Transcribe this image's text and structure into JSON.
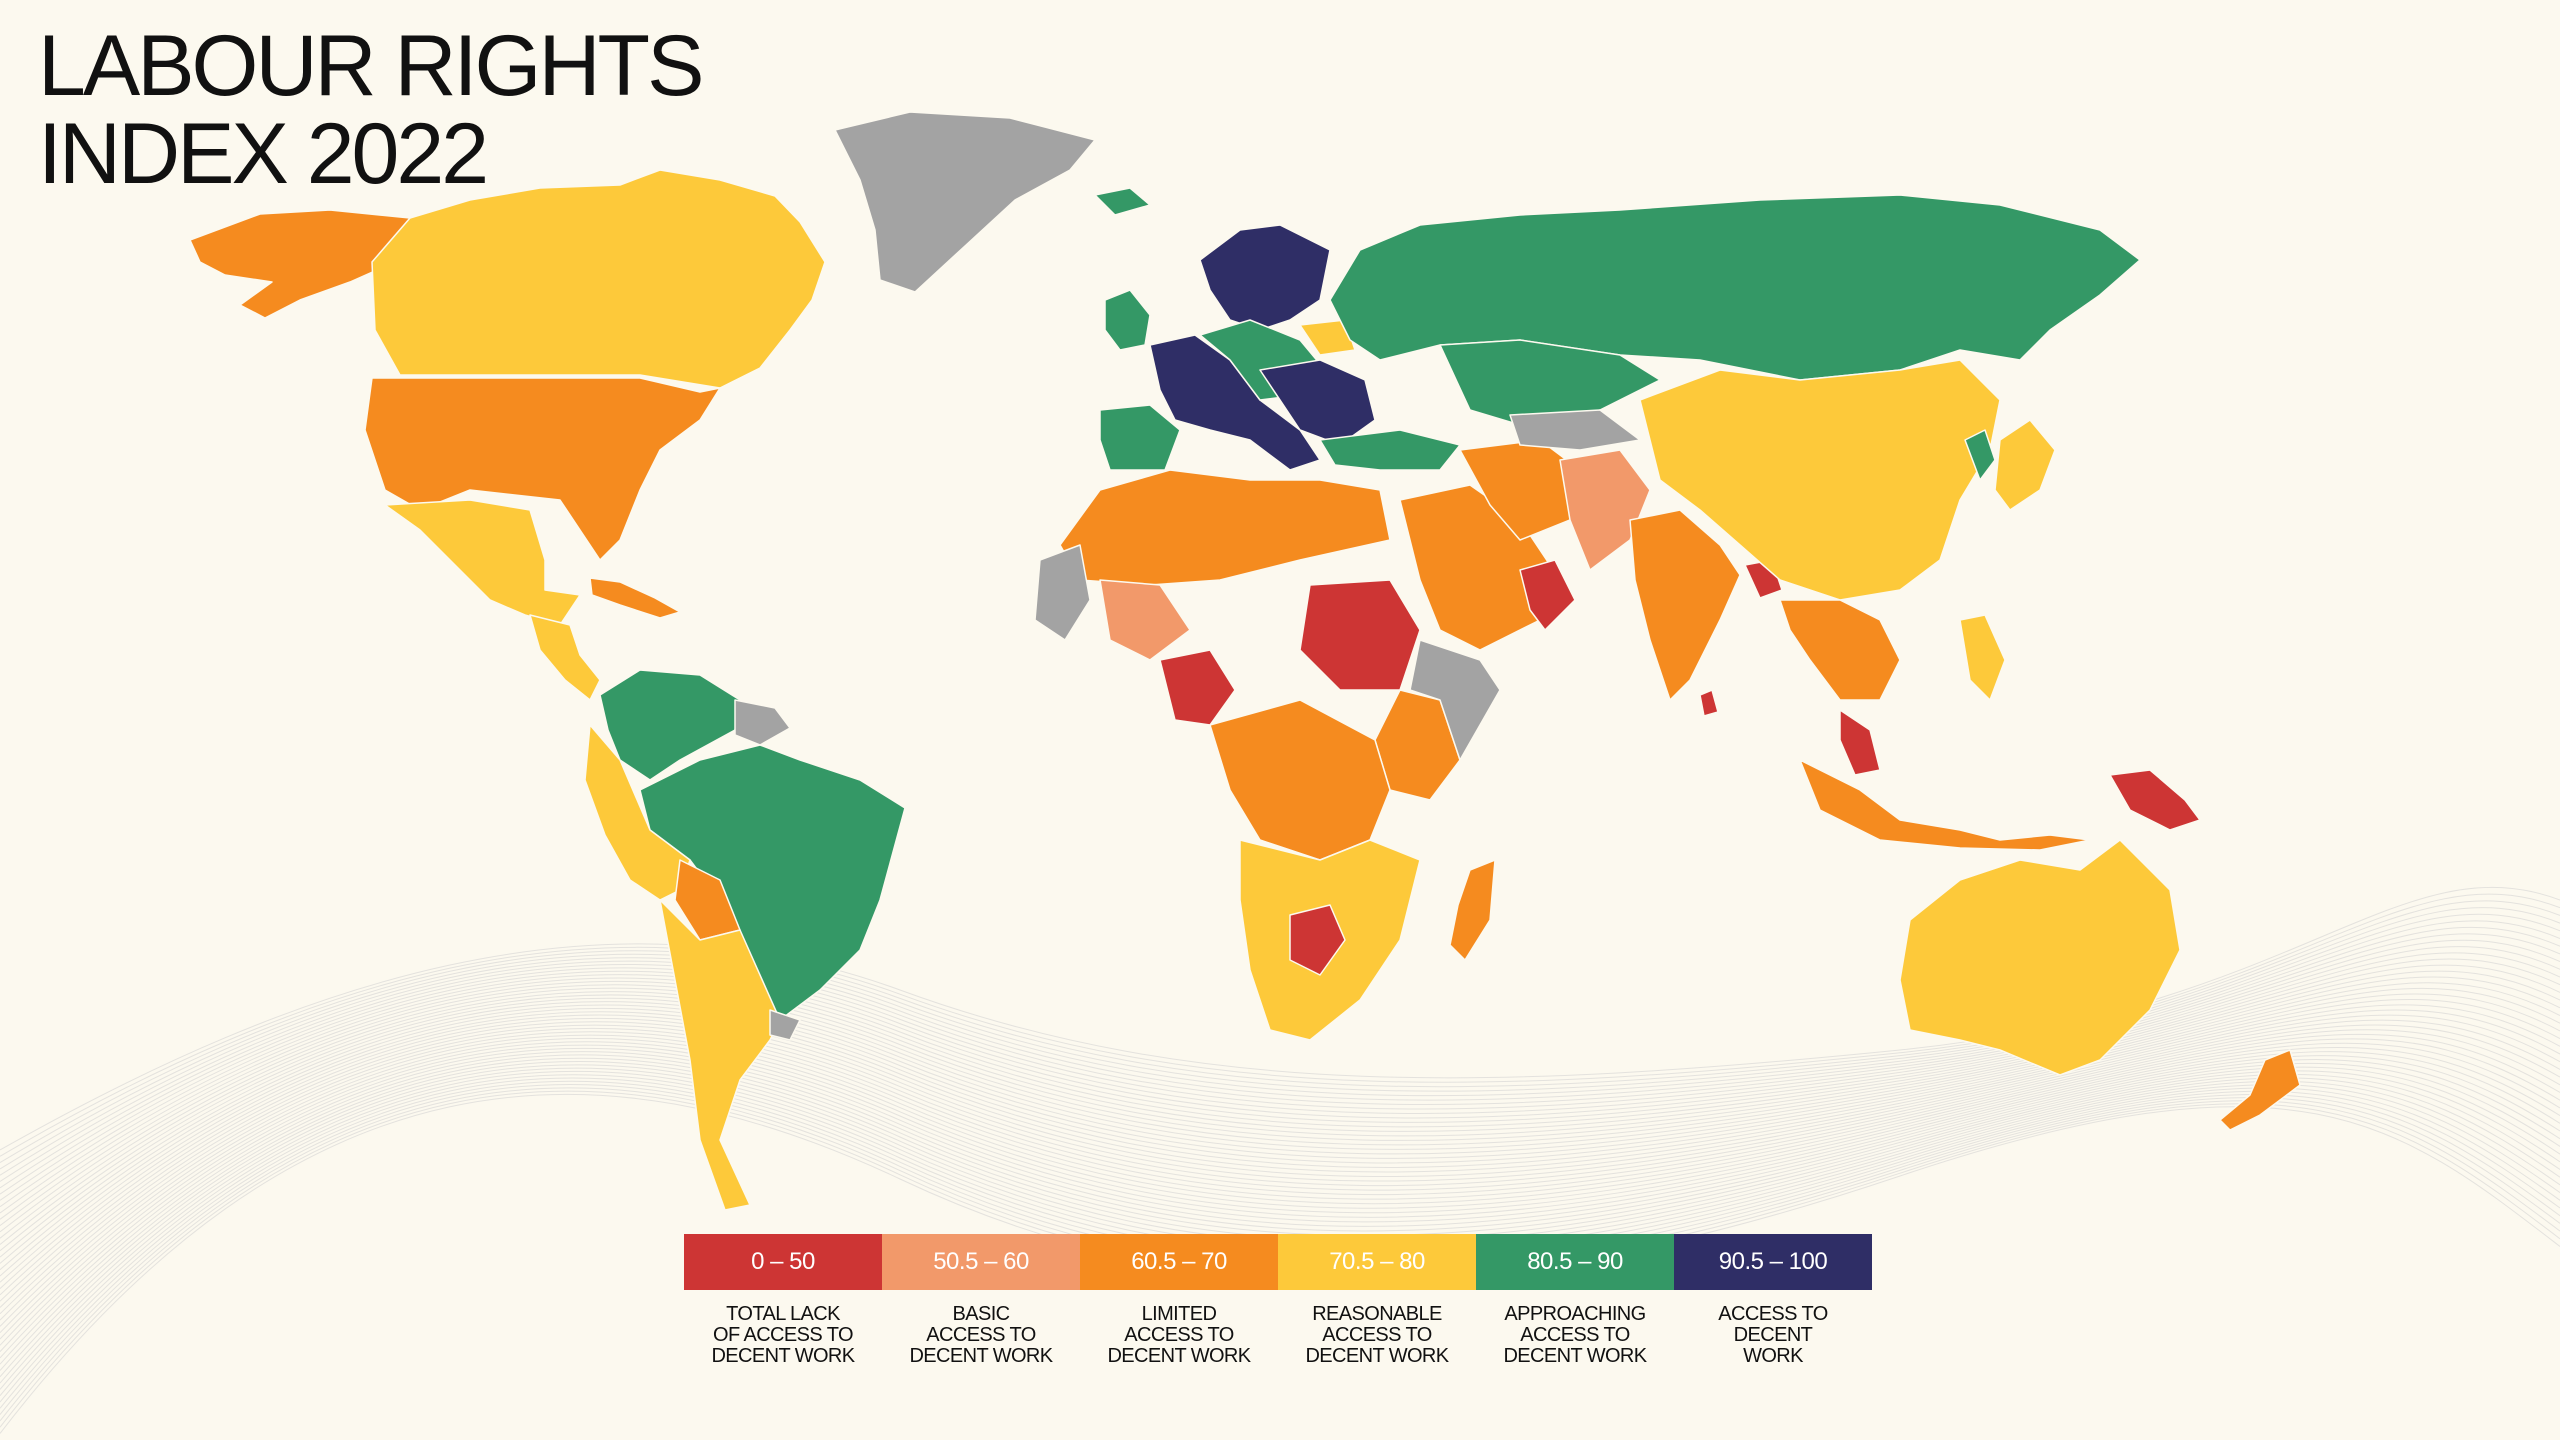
{
  "title": {
    "line1": "LABOUR RIGHTS",
    "line2": "INDEX 2022"
  },
  "colors": {
    "background": "#fcf9ef",
    "no_data": "#a3a3a3",
    "wave_lines": "#cfcfcf"
  },
  "legend": [
    {
      "range": "0 – 50",
      "label": "TOTAL LACK\nOF ACCESS TO\nDECENT WORK",
      "color": "#cd3534"
    },
    {
      "range": "50.5 – 60",
      "label": "BASIC\nACCESS TO\nDECENT WORK",
      "color": "#f2996a"
    },
    {
      "range": "60.5 – 70",
      "label": "LIMITED\nACCESS TO\nDECENT WORK",
      "color": "#f58b1f"
    },
    {
      "range": "70.5 – 80",
      "label": "REASONABLE\nACCESS TO\nDECENT WORK",
      "color": "#fdc93a"
    },
    {
      "range": "80.5 – 90",
      "label": "APPROACHING\nACCESS TO\nDECENT WORK",
      "color": "#349866"
    },
    {
      "range": "90.5 – 100",
      "label": "ACCESS TO\nDECENT\nWORK",
      "color": "#2f2e66"
    }
  ],
  "regions": [
    {
      "name": "alaska",
      "band": 2
    },
    {
      "name": "canada",
      "band": 3
    },
    {
      "name": "greenland",
      "band": -1
    },
    {
      "name": "usa",
      "band": 2
    },
    {
      "name": "mexico",
      "band": 3
    },
    {
      "name": "central-america",
      "band": 3
    },
    {
      "name": "caribbean",
      "band": 2
    },
    {
      "name": "colombia-venezuela",
      "band": 4
    },
    {
      "name": "guianas",
      "band": -1
    },
    {
      "name": "brazil",
      "band": 4
    },
    {
      "name": "peru-ecuador",
      "band": 3
    },
    {
      "name": "bolivia",
      "band": 2
    },
    {
      "name": "chile-argentina",
      "band": 3
    },
    {
      "name": "uruguay",
      "band": -1
    },
    {
      "name": "iceland",
      "band": 4
    },
    {
      "name": "uk-ireland",
      "band": 4
    },
    {
      "name": "iberia",
      "band": 4
    },
    {
      "name": "western-europe",
      "band": 5
    },
    {
      "name": "nordics",
      "band": 5
    },
    {
      "name": "central-europe",
      "band": 4
    },
    {
      "name": "belarus",
      "band": 3
    },
    {
      "name": "eastern-europe",
      "band": 5
    },
    {
      "name": "russia",
      "band": 4
    },
    {
      "name": "kazakhstan",
      "band": 4
    },
    {
      "name": "turkey",
      "band": 4
    },
    {
      "name": "north-africa",
      "band": 2
    },
    {
      "name": "west-africa-nodata",
      "band": -1
    },
    {
      "name": "mali-niger",
      "band": 1
    },
    {
      "name": "nigeria",
      "band": 0
    },
    {
      "name": "sudan",
      "band": 0
    },
    {
      "name": "east-africa",
      "band": 2
    },
    {
      "name": "horn-somalia",
      "band": -1
    },
    {
      "name": "central-africa",
      "band": 2
    },
    {
      "name": "southern-africa",
      "band": 3
    },
    {
      "name": "zimbabwe",
      "band": 0
    },
    {
      "name": "madagascar",
      "band": 2
    },
    {
      "name": "arabia",
      "band": 2
    },
    {
      "name": "oman",
      "band": 0
    },
    {
      "name": "iran",
      "band": 2
    },
    {
      "name": "afghanistan-pakistan",
      "band": 1
    },
    {
      "name": "central-asia",
      "band": -1
    },
    {
      "name": "india",
      "band": 2
    },
    {
      "name": "sri-lanka",
      "band": 0
    },
    {
      "name": "bangladesh",
      "band": 0
    },
    {
      "name": "china-mongolia",
      "band": 3
    },
    {
      "name": "korea",
      "band": 4
    },
    {
      "name": "japan",
      "band": 3
    },
    {
      "name": "southeast-asia",
      "band": 2
    },
    {
      "name": "philippines",
      "band": 3
    },
    {
      "name": "malaysia",
      "band": 0
    },
    {
      "name": "indonesia",
      "band": 2
    },
    {
      "name": "papua-new-guinea",
      "band": 0
    },
    {
      "name": "australia",
      "band": 3
    },
    {
      "name": "new-zealand",
      "band": 2
    }
  ]
}
